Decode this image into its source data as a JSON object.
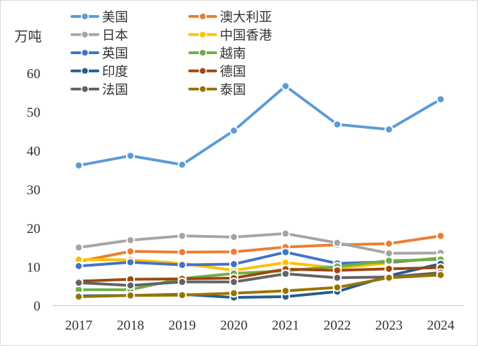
{
  "chart_data": {
    "type": "line",
    "ylabel": "万吨",
    "categories": [
      "2017",
      "2018",
      "2019",
      "2020",
      "2021",
      "2022",
      "2023",
      "2024"
    ],
    "y_ticks": [
      "0",
      "10",
      "20",
      "30",
      "40",
      "50",
      "60"
    ],
    "ylim": [
      0,
      60
    ],
    "grid": false,
    "legend_position": "top",
    "series": [
      {
        "name": "美国",
        "color": "#5b9bd5",
        "values": [
          36.2,
          38.7,
          36.4,
          45.2,
          56.7,
          46.8,
          45.5,
          53.3
        ]
      },
      {
        "name": "澳大利亚",
        "color": "#ed7d31",
        "values": [
          11.4,
          14.0,
          13.8,
          13.9,
          15.1,
          15.7,
          16.0,
          18.0
        ]
      },
      {
        "name": "日本",
        "color": "#a5a5a5",
        "values": [
          15.0,
          16.9,
          18.0,
          17.7,
          18.6,
          16.2,
          13.5,
          13.6
        ]
      },
      {
        "name": "中国香港",
        "color": "#ffc000",
        "values": [
          11.9,
          11.8,
          10.9,
          9.1,
          11.1,
          9.7,
          11.0,
          12.4
        ]
      },
      {
        "name": "英国",
        "color": "#4472c4",
        "values": [
          10.2,
          11.2,
          10.5,
          10.7,
          13.8,
          10.9,
          11.3,
          12.1
        ]
      },
      {
        "name": "越南",
        "color": "#70ad47",
        "values": [
          4.1,
          4.1,
          7.0,
          8.3,
          9.0,
          10.1,
          11.6,
          11.9
        ]
      },
      {
        "name": "印度",
        "color": "#255e91",
        "values": [
          2.5,
          2.6,
          2.9,
          2.1,
          2.3,
          3.6,
          7.7,
          10.8
        ]
      },
      {
        "name": "德国",
        "color": "#9e480e",
        "values": [
          6.3,
          6.8,
          6.9,
          7.1,
          9.4,
          9.1,
          9.5,
          9.8
        ]
      },
      {
        "name": "法国",
        "color": "#636363",
        "values": [
          5.9,
          5.2,
          6.1,
          6.1,
          8.2,
          7.2,
          7.4,
          8.5
        ]
      },
      {
        "name": "泰国",
        "color": "#997300",
        "values": [
          2.3,
          2.6,
          2.7,
          3.2,
          3.8,
          4.7,
          7.2,
          7.9
        ]
      }
    ]
  }
}
